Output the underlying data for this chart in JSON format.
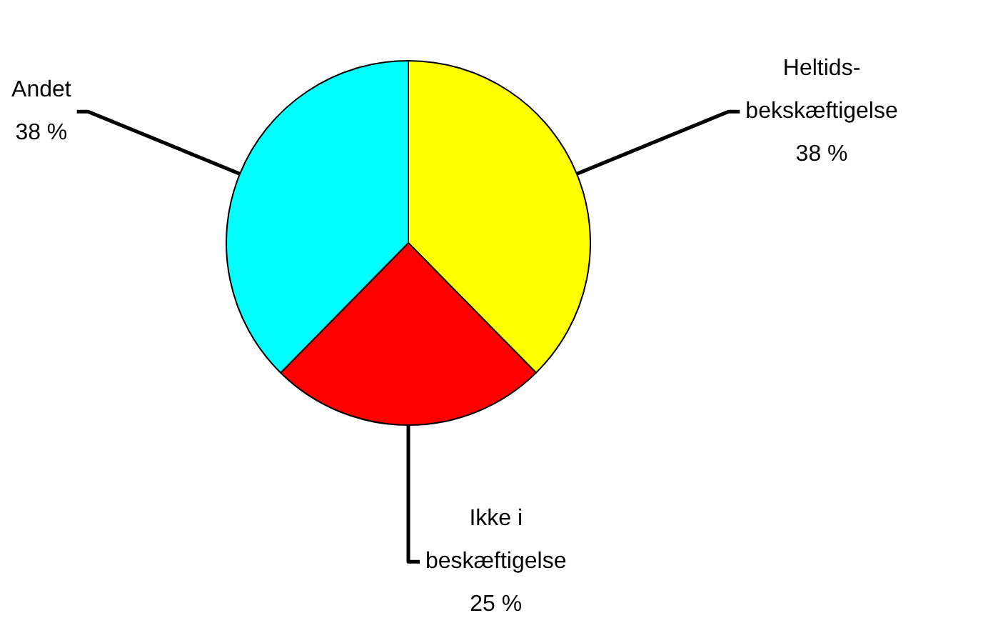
{
  "chart_data": {
    "type": "pie",
    "categories": [
      "Heltids-\nbekskæftigelse",
      "Ikke i\nbeskæftigelse",
      "Andet"
    ],
    "values": [
      38,
      25,
      38
    ],
    "value_labels": [
      "38 %",
      "25 %",
      "38 %"
    ],
    "colors": [
      "#ffff00",
      "#ff0000",
      "#00ffff"
    ]
  }
}
